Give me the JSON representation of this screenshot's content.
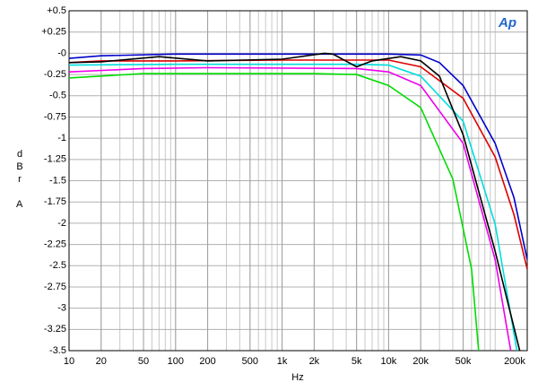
{
  "chart_data": {
    "type": "line",
    "logo": "Ap",
    "y_label": "dBr",
    "y_unit": "A",
    "x_label": "Hz",
    "x_log": true,
    "grid": true,
    "xlim": [
      10,
      200000
    ],
    "ylim": [
      -3.5,
      0.5
    ],
    "xticks": [
      10,
      20,
      50,
      100,
      200,
      500,
      {
        "value": 1000,
        "label": "1k"
      },
      {
        "value": 2000,
        "label": "2k"
      },
      {
        "value": 5000,
        "label": "5k"
      },
      {
        "value": 10000,
        "label": "10k"
      },
      {
        "value": 20000,
        "label": "20k"
      },
      {
        "value": 50000,
        "label": "50k"
      },
      {
        "value": 200000,
        "label": "200k"
      }
    ],
    "yticks": [
      {
        "value": 0.5,
        "label": "+0.5"
      },
      {
        "value": 0.25,
        "label": "+0.25"
      },
      {
        "value": 0,
        "label": "-0"
      },
      -0.25,
      -0.5,
      -0.75,
      -1,
      -1.25,
      -1.5,
      -1.75,
      -2,
      -2.25,
      -2.5,
      -2.75,
      -3,
      -3.25,
      -3.5
    ],
    "series": [
      {
        "color": "#0000cc",
        "x": [
          10,
          20,
          100,
          1000,
          10000,
          20000,
          30000,
          50000,
          100000,
          150000,
          200000
        ],
        "values": [
          -0.06,
          -0.03,
          -0.01,
          -0.01,
          -0.01,
          -0.02,
          -0.11,
          -0.38,
          -1.06,
          -1.7,
          -2.43
        ]
      },
      {
        "color": "#dd0000",
        "x": [
          10,
          20,
          100,
          1000,
          10000,
          20000,
          50000,
          100000,
          150000,
          200000
        ],
        "values": [
          -0.11,
          -0.09,
          -0.09,
          -0.08,
          -0.08,
          -0.16,
          -0.53,
          -1.22,
          -1.9,
          -2.54
        ]
      },
      {
        "color": "#00dddd",
        "x": [
          10,
          100,
          1000,
          5000,
          10000,
          20000,
          50000,
          100000,
          160000
        ],
        "values": [
          -0.14,
          -0.13,
          -0.13,
          -0.13,
          -0.14,
          -0.27,
          -0.8,
          -2.01,
          -3.5
        ]
      },
      {
        "color": "#000000",
        "x": [
          10,
          20,
          70,
          200,
          1000,
          2500,
          3000,
          5000,
          7000,
          13000,
          20000,
          30000,
          50000,
          100000,
          170000
        ],
        "values": [
          -0.11,
          -0.1,
          -0.04,
          -0.09,
          -0.07,
          0,
          -0.01,
          -0.16,
          -0.09,
          -0.04,
          -0.09,
          -0.27,
          -0.96,
          -2.33,
          -3.5
        ]
      },
      {
        "color": "#ee00ee",
        "x": [
          10,
          50,
          200,
          5000,
          10000,
          20000,
          50000,
          100000,
          140000
        ],
        "values": [
          -0.22,
          -0.18,
          -0.17,
          -0.18,
          -0.22,
          -0.38,
          -1.06,
          -2.43,
          -3.5
        ]
      },
      {
        "color": "#00dd00",
        "x": [
          10,
          50,
          2000,
          5000,
          10000,
          20000,
          40000,
          60000,
          70000
        ],
        "values": [
          -0.29,
          -0.24,
          -0.24,
          -0.25,
          -0.38,
          -0.64,
          -1.48,
          -2.54,
          -3.5
        ]
      }
    ]
  }
}
